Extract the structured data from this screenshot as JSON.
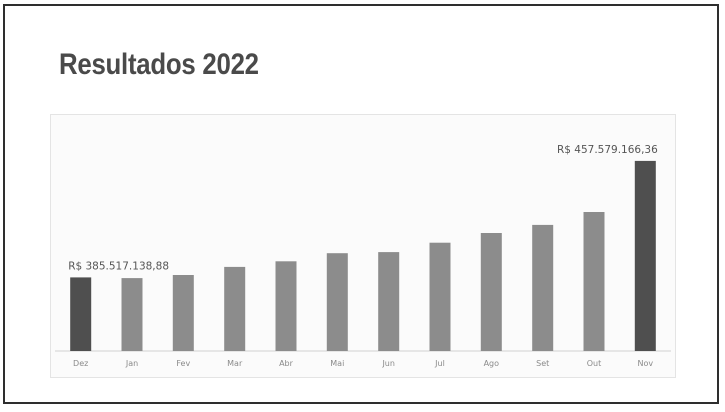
{
  "title": "Resultados 2022",
  "chart_data": {
    "type": "bar",
    "categories": [
      "Dez",
      "Jan",
      "Fev",
      "Mar",
      "Abr",
      "Mai",
      "Jun",
      "Jul",
      "Ago",
      "Set",
      "Out",
      "Nov"
    ],
    "values": [
      385517138.88,
      385100000,
      387000000,
      392000000,
      395500000,
      400500000,
      401200000,
      407000000,
      413000000,
      418000000,
      426000000,
      457579166.36
    ],
    "data_labels": [
      {
        "category": "Dez",
        "text": "R$ 385.517.138,88"
      },
      {
        "category": "Nov",
        "text": "R$ 457.579.166,36"
      }
    ],
    "highlighted_categories": [
      "Dez",
      "Nov"
    ],
    "colors": {
      "bar": "#8c8c8c",
      "highlight": "#4f4f4f",
      "tick": "#8a8a8a",
      "label": "#555555"
    },
    "title": "",
    "xlabel": "",
    "ylabel": "",
    "grid": false,
    "legend": "none"
  }
}
